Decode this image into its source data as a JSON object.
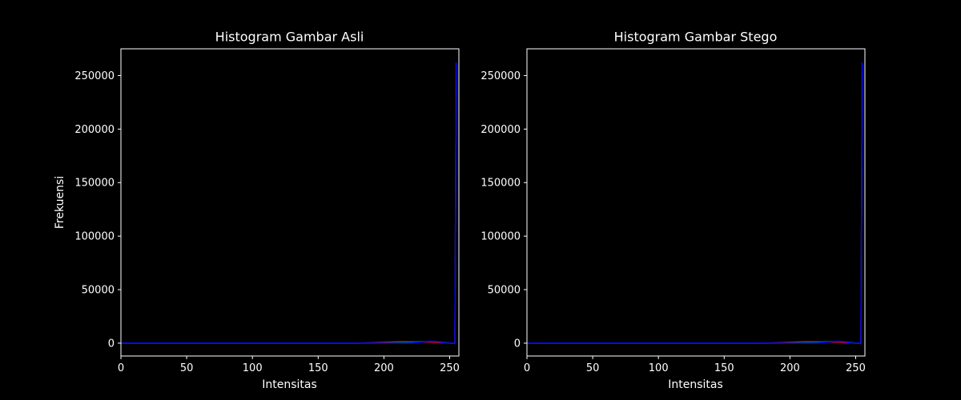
{
  "figure": {
    "background": "#000000",
    "foreground": "#ffffff"
  },
  "chart_data": [
    {
      "type": "line",
      "title": "Histogram Gambar Asli",
      "xlabel": "Intensitas",
      "ylabel": "Frekuensi",
      "xlim": [
        0,
        257
      ],
      "ylim": [
        -12000,
        275000
      ],
      "x_ticks": [
        0,
        50,
        100,
        150,
        200,
        250
      ],
      "y_ticks": [
        0,
        50000,
        100000,
        150000,
        200000,
        250000
      ],
      "grid": false,
      "series": [
        {
          "color": "#ff0000",
          "points": [
            [
              0,
              0
            ],
            [
              180,
              0
            ],
            [
              190,
              300
            ],
            [
              200,
              800
            ],
            [
              210,
              1200
            ],
            [
              220,
              1300
            ],
            [
              230,
              1100
            ],
            [
              238,
              800
            ],
            [
              244,
              400
            ],
            [
              248,
              100
            ],
            [
              252,
              0
            ],
            [
              254,
              0
            ],
            [
              255,
              262000
            ]
          ]
        },
        {
          "color": "#008000",
          "points": [
            [
              0,
              0
            ],
            [
              190,
              0
            ],
            [
              200,
              300
            ],
            [
              210,
              700
            ],
            [
              220,
              1100
            ],
            [
              230,
              1500
            ],
            [
              238,
              1700
            ],
            [
              244,
              1000
            ],
            [
              248,
              300
            ],
            [
              252,
              0
            ],
            [
              254,
              0
            ],
            [
              255,
              262000
            ]
          ]
        },
        {
          "color": "#0000ff",
          "points": [
            [
              0,
              0
            ],
            [
              215,
              0
            ],
            [
              222,
              300
            ],
            [
              228,
              1000
            ],
            [
              234,
              1800
            ],
            [
              240,
              1600
            ],
            [
              244,
              800
            ],
            [
              247,
              100
            ],
            [
              250,
              0
            ],
            [
              254,
              0
            ],
            [
              255,
              262000
            ]
          ]
        }
      ]
    },
    {
      "type": "line",
      "title": "Histogram Gambar Stego",
      "xlabel": "Intensitas",
      "ylabel": "",
      "xlim": [
        0,
        257
      ],
      "ylim": [
        -12000,
        275000
      ],
      "x_ticks": [
        0,
        50,
        100,
        150,
        200,
        250
      ],
      "y_ticks": [
        0,
        50000,
        100000,
        150000,
        200000,
        250000
      ],
      "grid": false,
      "series": [
        {
          "color": "#ff0000",
          "points": [
            [
              0,
              0
            ],
            [
              180,
              0
            ],
            [
              190,
              300
            ],
            [
              200,
              800
            ],
            [
              210,
              1200
            ],
            [
              220,
              1300
            ],
            [
              230,
              1100
            ],
            [
              238,
              800
            ],
            [
              244,
              400
            ],
            [
              248,
              100
            ],
            [
              252,
              0
            ],
            [
              254,
              0
            ],
            [
              255,
              262000
            ]
          ]
        },
        {
          "color": "#008000",
          "points": [
            [
              0,
              0
            ],
            [
              190,
              0
            ],
            [
              200,
              300
            ],
            [
              210,
              700
            ],
            [
              220,
              1100
            ],
            [
              230,
              1500
            ],
            [
              238,
              1700
            ],
            [
              244,
              1000
            ],
            [
              248,
              300
            ],
            [
              252,
              0
            ],
            [
              254,
              0
            ],
            [
              255,
              262000
            ]
          ]
        },
        {
          "color": "#0000ff",
          "points": [
            [
              0,
              0
            ],
            [
              215,
              0
            ],
            [
              222,
              300
            ],
            [
              228,
              1000
            ],
            [
              234,
              1800
            ],
            [
              240,
              1600
            ],
            [
              244,
              800
            ],
            [
              247,
              100
            ],
            [
              250,
              0
            ],
            [
              254,
              0
            ],
            [
              255,
              262000
            ]
          ]
        }
      ]
    }
  ]
}
